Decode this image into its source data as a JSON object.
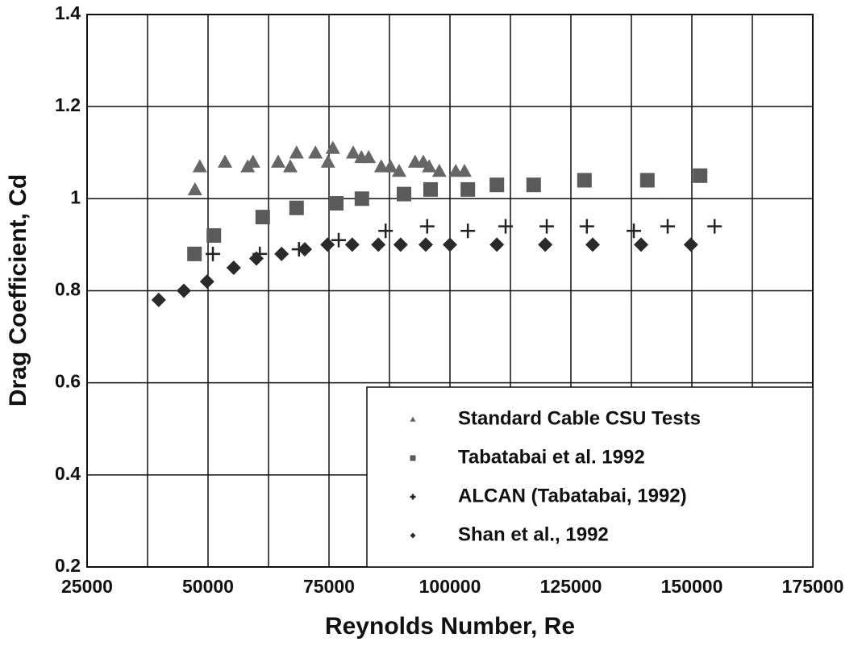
{
  "chart_data": {
    "type": "scatter",
    "xlabel": "Reynolds Number, Re",
    "ylabel": "Drag Coefficient, Cd",
    "xlim": [
      25000,
      175000
    ],
    "xticks": [
      25000,
      50000,
      75000,
      100000,
      125000,
      150000,
      175000
    ],
    "x_minor_ticks": [
      37500,
      62500,
      87500,
      112500,
      137500,
      162500
    ],
    "ylim": [
      0.2,
      1.4
    ],
    "yticks": [
      0.2,
      0.4,
      0.6,
      0.8,
      1,
      1.2,
      1.4
    ],
    "grid": true,
    "legend": "lower right",
    "series": [
      {
        "name": "Standard Cable CSU Tests",
        "marker": "triangle",
        "color": "#666666",
        "x": [
          47300,
          48300,
          53500,
          58200,
          59300,
          64500,
          67000,
          68300,
          72200,
          74800,
          75800,
          80000,
          81700,
          83200,
          85800,
          87700,
          89500,
          92800,
          94500,
          95700,
          97800,
          101200,
          103000
        ],
        "values": [
          1.02,
          1.07,
          1.08,
          1.07,
          1.08,
          1.08,
          1.07,
          1.1,
          1.1,
          1.08,
          1.11,
          1.1,
          1.09,
          1.09,
          1.07,
          1.07,
          1.06,
          1.08,
          1.08,
          1.07,
          1.06,
          1.06,
          1.06
        ]
      },
      {
        "name": "Tabatabai et al. 1992",
        "marker": "square",
        "color": "#5a5a5a",
        "x": [
          47200,
          51200,
          61300,
          68300,
          76500,
          81800,
          90500,
          96000,
          103700,
          109700,
          117300,
          127800,
          140800,
          151700
        ],
        "values": [
          0.88,
          0.92,
          0.96,
          0.98,
          0.99,
          1.0,
          1.01,
          1.02,
          1.02,
          1.03,
          1.03,
          1.04,
          1.04,
          1.05
        ]
      },
      {
        "name": "ALCAN (Tabatabai, 1992)",
        "marker": "plus",
        "color": "#222222",
        "x": [
          51000,
          60700,
          68800,
          77000,
          86700,
          95300,
          103700,
          111500,
          120000,
          128300,
          138000,
          145000,
          154700
        ],
        "values": [
          0.88,
          0.88,
          0.89,
          0.91,
          0.93,
          0.94,
          0.93,
          0.94,
          0.94,
          0.94,
          0.93,
          0.94,
          0.94
        ]
      },
      {
        "name": "Shan et al., 1992",
        "marker": "diamond",
        "color": "#2a2a2a",
        "x": [
          39800,
          45000,
          49800,
          55300,
          60000,
          65200,
          70000,
          74700,
          79800,
          85200,
          89800,
          95000,
          100000,
          109700,
          119700,
          129500,
          139500,
          149800
        ],
        "values": [
          0.78,
          0.8,
          0.82,
          0.85,
          0.87,
          0.88,
          0.89,
          0.9,
          0.9,
          0.9,
          0.9,
          0.9,
          0.9,
          0.9,
          0.9,
          0.9,
          0.9,
          0.9
        ]
      }
    ]
  }
}
